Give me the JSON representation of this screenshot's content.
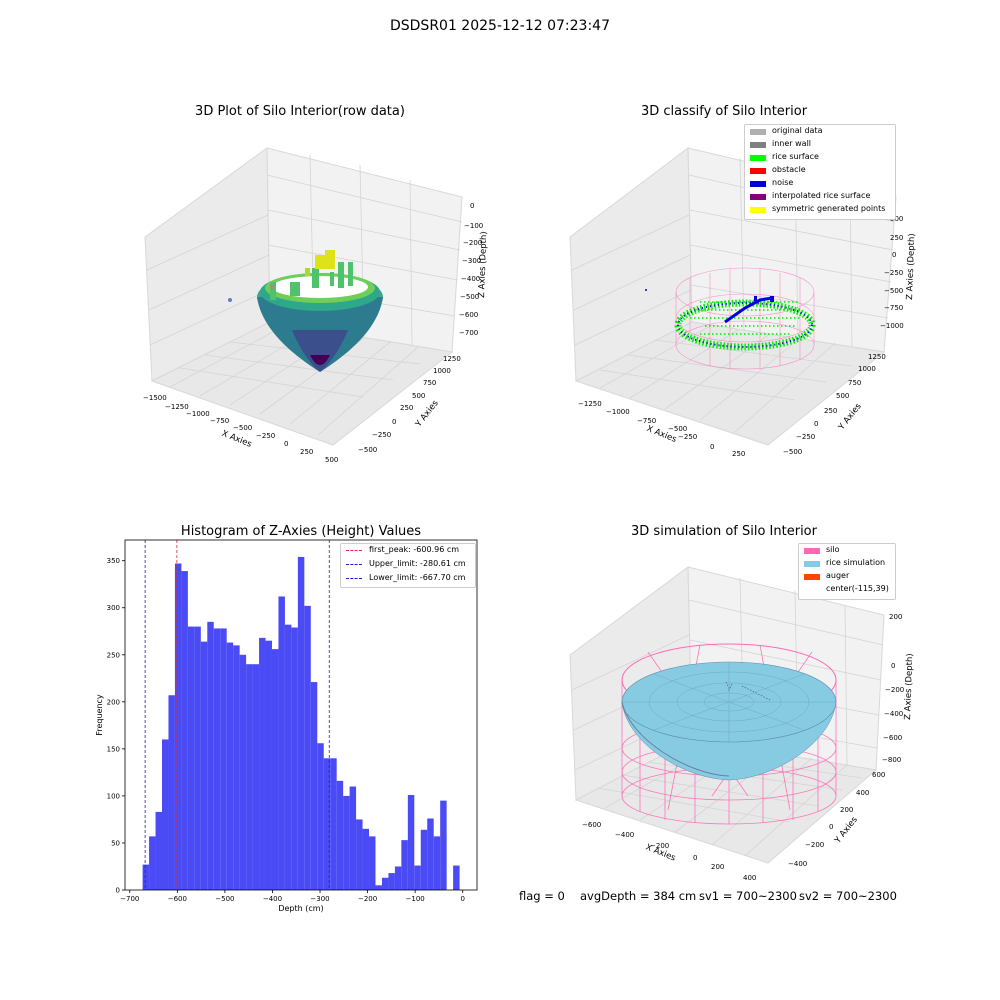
{
  "figure": {
    "suptitle": "DSDSR01 2025-12-12 07:23:47",
    "footer": {
      "flag": "flag = 0",
      "avg_depth": "avgDepth = 384 cm",
      "sv1": "sv1 = 700~2300",
      "sv2": "sv2 = 700~2300"
    }
  },
  "colors": {
    "hist_bar": "#4b4bf5",
    "first_peak_line": "#e03030",
    "limit_line": "#2020c0",
    "silo_pink": "#ff69b4",
    "rice_simulation": "#87cbe3",
    "auger": "#ff4500",
    "rice_surface_green": "#00ff00",
    "noise_blue": "#0000ff"
  },
  "plot_raw": {
    "title": "3D Plot of Silo Interior(row data)",
    "xlabel": "X Axies",
    "ylabel": "Y Axies",
    "zlabel": "Z Axies (Depth)",
    "x_ticks": [
      "−1500",
      "−1250",
      "−1000",
      "−750",
      "−500",
      "−250",
      "0",
      "250",
      "500"
    ],
    "y_ticks": [
      "−500",
      "−250",
      "0",
      "250",
      "500",
      "750",
      "1000",
      "1250"
    ],
    "z_ticks": [
      "0",
      "−100",
      "−200",
      "−300",
      "−400",
      "−500",
      "−600",
      "−700"
    ]
  },
  "plot_classify": {
    "title": "3D classify of Silo Interior",
    "xlabel": "X Axies",
    "ylabel": "Y Axies",
    "zlabel": "Z Axies (Depth)",
    "legend": [
      {
        "label": "original data",
        "color": "#b0b0b0"
      },
      {
        "label": "inner wall",
        "color": "#808080"
      },
      {
        "label": "rice surface",
        "color": "#00ff00"
      },
      {
        "label": "obstacle",
        "color": "#ff0000"
      },
      {
        "label": "noise",
        "color": "#0000dd"
      },
      {
        "label": "interpolated rice surface",
        "color": "#800080"
      },
      {
        "label": "symmetric generated points",
        "color": "#ffff00"
      }
    ],
    "x_ticks": [
      "−1250",
      "−1000",
      "−750",
      "−500",
      "−250",
      "0",
      "250"
    ],
    "y_ticks": [
      "−500",
      "−250",
      "0",
      "250",
      "500",
      "750",
      "1000",
      "1250"
    ],
    "z_ticks": [
      "500",
      "250",
      "0",
      "−250",
      "−500",
      "−750",
      "−1000"
    ]
  },
  "plot_sim": {
    "title": "3D simulation of Silo Interior",
    "xlabel": "X Axies",
    "ylabel": "Y Axies",
    "zlabel": "Z Axies (Depth)",
    "legend": [
      {
        "label": "silo",
        "color": "#ff69b4"
      },
      {
        "label": "rice simulation",
        "color": "#87cbe3"
      },
      {
        "label": "auger",
        "color": "#ff4500"
      },
      {
        "label": "center(-115,39)",
        "color": ""
      }
    ],
    "x_ticks": [
      "−600",
      "−400",
      "−200",
      "0",
      "200",
      "400"
    ],
    "y_ticks": [
      "−400",
      "−200",
      "0",
      "200",
      "400",
      "600"
    ],
    "z_ticks": [
      "200",
      "0",
      "−200",
      "−400",
      "−600",
      "−800"
    ]
  },
  "chart_data": {
    "type": "bar",
    "title": "Histogram of Z-Axies (Height) Values",
    "xlabel": "Depth (cm)",
    "ylabel": "Frequency",
    "xlim": [
      -710,
      30
    ],
    "ylim": [
      0,
      372
    ],
    "x_ticks": [
      -700,
      -600,
      -500,
      -400,
      -300,
      -200,
      -100,
      0
    ],
    "y_ticks": [
      0,
      50,
      100,
      150,
      200,
      250,
      300,
      350
    ],
    "bin_width": 13.6,
    "bin_start": -673,
    "values": [
      27,
      57,
      83,
      160,
      207,
      347,
      339,
      280,
      280,
      264,
      285,
      278,
      278,
      263,
      260,
      250,
      240,
      240,
      268,
      265,
      256,
      312,
      282,
      279,
      354,
      302,
      221,
      156,
      140,
      140,
      116,
      100,
      110,
      75,
      65,
      57,
      5,
      13,
      18,
      25,
      53,
      101,
      26,
      64,
      76,
      57,
      95,
      0,
      26
    ],
    "vlines": [
      {
        "label": "first_peak: -600.96 cm",
        "x": -600.96,
        "style": "first_peak"
      },
      {
        "label": "Upper_limit: -280.61 cm",
        "x": -280.61,
        "style": "limit"
      },
      {
        "label": "Lower_limit: -667.70 cm",
        "x": -667.7,
        "style": "limit"
      }
    ],
    "legend_position": "top-right"
  }
}
